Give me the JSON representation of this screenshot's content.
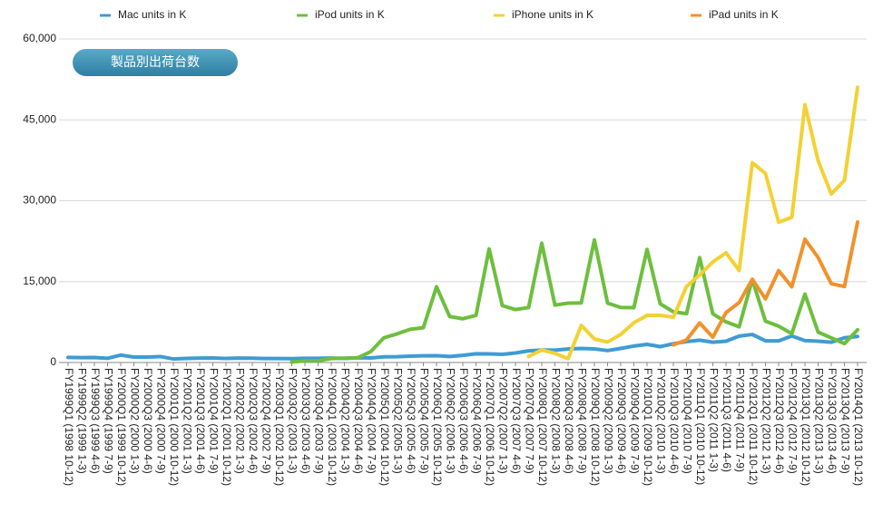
{
  "chart_data": {
    "type": "line",
    "button": "製品別出荷台数",
    "legend": "top",
    "grid": true,
    "ylim": [
      0,
      60000
    ],
    "yticks": [
      0,
      {
        "value": 15000,
        "label": "15,000"
      },
      {
        "value": 30000,
        "label": "30,000"
      },
      {
        "value": 45000,
        "label": "45,000"
      },
      {
        "value": 60000,
        "label": "60,000"
      }
    ],
    "categories": [
      "FY1999Q1 (1998 10-12)",
      "FY1999Q2 (1999 1-3)",
      "FY1999Q3 (1999 4-6)",
      "FY1999Q4 (1999 7-9)",
      "FY2000Q1 (1999 10-12)",
      "FY2000Q2 (2000 1-3)",
      "FY2000Q3 (2000 4-6)",
      "FY2000Q4 (2000 7-9)",
      "FY2001Q1 (2000 10-12)",
      "FY2001Q2 (2001 1-3)",
      "FY2001Q3 (2001 4-6)",
      "FY2001Q4 (2001 7-9)",
      "FY2002Q1 (2001 10-12)",
      "FY2002Q2 (2002 1-3)",
      "FY2002Q3 (2002 4-6)",
      "FY2002Q4 (2002 7-9)",
      "FY2003Q1 (2002 10-12)",
      "FY2003Q2 (2003 1-3)",
      "FY2003Q3 (2003 4-6)",
      "FY2003Q4 (2003 7-9)",
      "FY2004Q1 (2003 10-12)",
      "FY2004Q2 (2004 1-3)",
      "FY2004Q3 (2004 4-6)",
      "FY2004Q4 (2004 7-9)",
      "FY2005Q1 (2004 10-12)",
      "FY2005Q2 (2005 1-3)",
      "FY2005Q3 (2005 4-6)",
      "FY2005Q4 (2005 7-9)",
      "FY2006Q1 (2005 10-12)",
      "FY2006Q2 (2006 1-3)",
      "FY2006Q3 (2006 4-6)",
      "FY2006Q4 (2006 7-9)",
      "FY2007Q1 (2006 10-12)",
      "FY2007Q2 (2007 1-3)",
      "FY2007Q3 (2007 4-6)",
      "FY2007Q4 (2007 7-9)",
      "FY2008Q1 (2007 10-12)",
      "FY2008Q2 (2008 1-3)",
      "FY2008Q3 (2008 4-6)",
      "FY2008Q4 (2008 7-9)",
      "FY2009Q1 (2008 10-12)",
      "FY2009Q2 (2009 1-3)",
      "FY2009Q3 (2009 4-6)",
      "FY2009Q4 (2009 7-9)",
      "FY2010Q1 (2009 10-12)",
      "FY2010Q2 (2010 1-3)",
      "FY2010Q3 (2010 4-6)",
      "FY2010Q4 (2010 7-9)",
      "FY2011Q1 (2010 10-12)",
      "FY2011Q2 (2011 1-3)",
      "FY2011Q3 (2011 4-6)",
      "FY2011Q4 (2011 7-9)",
      "FY2012Q1 (2011 10-12)",
      "FY2012Q2 (2012 1-3)",
      "FY2012Q3 (2012 4-6)",
      "FY2012Q4 (2012 7-9)",
      "FY2013Q1 (2012 10-12)",
      "FY2013Q2 (2013 1-3)",
      "FY2013Q3 (2013 4-6)",
      "FY2013Q4 (2013 7-9)",
      "FY2014Q1 (2013 10-12)"
    ],
    "series": [
      {
        "name": "Mac units in K",
        "color": "#3f9bd3",
        "values": [
          944,
          905,
          918,
          772,
          1377,
          1004,
          1017,
          1100,
          659,
          751,
          827,
          850,
          746,
          813,
          808,
          743,
          744,
          711,
          771,
          787,
          829,
          749,
          876,
          836,
          1046,
          1070,
          1182,
          1236,
          1254,
          1112,
          1327,
          1610,
          1606,
          1517,
          1764,
          2164,
          2319,
          2289,
          2496,
          2611,
          2524,
          2216,
          2603,
          3053,
          3362,
          2943,
          3472,
          3885,
          4134,
          3760,
          3947,
          4894,
          5198,
          4017,
          4020,
          4923,
          4061,
          3952,
          3754,
          4574,
          4837
        ]
      },
      {
        "name": "iPod units in K",
        "color": "#6dbf3d",
        "values": [
          null,
          null,
          null,
          null,
          null,
          null,
          null,
          null,
          null,
          null,
          null,
          null,
          null,
          null,
          null,
          null,
          null,
          78,
          304,
          336,
          733,
          807,
          860,
          2016,
          4580,
          5311,
          6155,
          6451,
          14043,
          8526,
          8111,
          8729,
          21066,
          10549,
          9815,
          10200,
          22121,
          10644,
          11011,
          11052,
          22727,
          11013,
          10215,
          10177,
          20970,
          10885,
          9406,
          9051,
          19446,
          9017,
          7535,
          6622,
          15397,
          7673,
          6751,
          5344,
          12679,
          5633,
          4569,
          3498,
          6049
        ]
      },
      {
        "name": "iPhone units in K",
        "color": "#f3d135",
        "values": [
          null,
          null,
          null,
          null,
          null,
          null,
          null,
          null,
          null,
          null,
          null,
          null,
          null,
          null,
          null,
          null,
          null,
          null,
          null,
          null,
          null,
          null,
          null,
          null,
          null,
          null,
          null,
          null,
          null,
          null,
          null,
          null,
          null,
          null,
          null,
          1119,
          2315,
          1703,
          717,
          6892,
          4363,
          3793,
          5208,
          7367,
          8737,
          8752,
          8398,
          14102,
          16235,
          18647,
          20338,
          17070,
          37044,
          35064,
          26028,
          26910,
          47789,
          37430,
          31241,
          33797,
          51025
        ]
      },
      {
        "name": "iPad units in K",
        "color": "#f0922b",
        "values": [
          null,
          null,
          null,
          null,
          null,
          null,
          null,
          null,
          null,
          null,
          null,
          null,
          null,
          null,
          null,
          null,
          null,
          null,
          null,
          null,
          null,
          null,
          null,
          null,
          null,
          null,
          null,
          null,
          null,
          null,
          null,
          null,
          null,
          null,
          null,
          null,
          null,
          null,
          null,
          null,
          null,
          null,
          null,
          null,
          null,
          null,
          3270,
          4188,
          7331,
          4694,
          9246,
          11123,
          15434,
          11798,
          17042,
          14036,
          22860,
          19477,
          14617,
          14079,
          26035
        ]
      }
    ]
  }
}
